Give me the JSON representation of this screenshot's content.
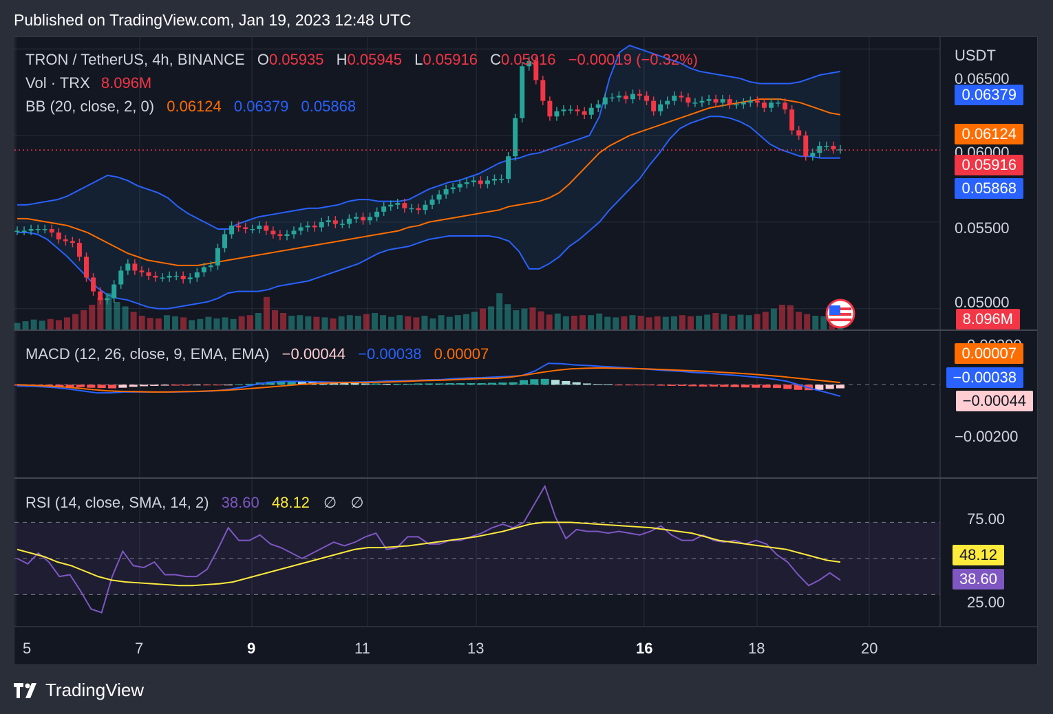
{
  "publish": "Published on TradingView.com, Jan 19, 2023 12:48 UTC",
  "brand": "TradingView",
  "legend": {
    "symbol": "TRON / TetherUS, 4h, BINANCE",
    "o_label": "O",
    "o": "0.05935",
    "h_label": "H",
    "h": "0.05945",
    "l_label": "L",
    "l": "0.05916",
    "c_label": "C",
    "c": "0.05916",
    "change": "−0.00019 (−0.32%)",
    "vol_label": "Vol · TRX",
    "vol": "8.096M",
    "bb_label": "BB (20, close, 2, 0)",
    "bb_mid": "0.06124",
    "bb_up": "0.06379",
    "bb_low": "0.05868",
    "macd_label": "MACD (12, 26, close, 9, EMA, EMA)",
    "macd_hist": "−0.00044",
    "macd_line": "−0.00038",
    "macd_signal": "0.00007",
    "rsi_label": "RSI (14, close, SMA, 14, 2)",
    "rsi": "38.60",
    "rsi_ma": "48.12",
    "na1": "∅",
    "na2": "∅"
  },
  "axis": {
    "currency": "USDT",
    "price_ticks": [
      "0.06500",
      "0.06000",
      "0.05500",
      "0.05000"
    ],
    "macd_ticks": [
      "0.00200",
      "−0.00200"
    ],
    "rsi_ticks": [
      "75.00",
      "25.00"
    ],
    "x_ticks": [
      "5",
      "7",
      "9",
      "11",
      "13",
      "16",
      "18",
      "20"
    ]
  },
  "tags": {
    "bb_up": "0.06379",
    "bb_mid": "0.06124",
    "price": "0.05916",
    "bb_low": "0.05868",
    "vol": "8.096M",
    "macd_signal": "0.00007",
    "macd_line": "−0.00038",
    "macd_hist": "−0.00044",
    "rsi_ma": "48.12",
    "rsi": "38.60"
  },
  "colors": {
    "up": "#26a69a",
    "down": "#f23645",
    "bb_basis": "#ff6d00",
    "bb_band": "#2962ff",
    "macd": "#2962ff",
    "signal": "#ff6d00",
    "rsi": "#7e57c2",
    "rsi_ma": "#ffeb3b"
  },
  "chart_data": {
    "type": "candlestick",
    "timeframe": "4h",
    "ylim": [
      0.0488,
      0.0656
    ],
    "close": [
      0.0545,
      0.0545,
      0.0546,
      0.0546,
      0.0546,
      0.0544,
      0.054,
      0.0539,
      0.0538,
      0.053,
      0.0518,
      0.051,
      0.0505,
      0.0506,
      0.0514,
      0.0522,
      0.0526,
      0.0522,
      0.0521,
      0.0519,
      0.0518,
      0.0518,
      0.0519,
      0.0519,
      0.0517,
      0.0518,
      0.0521,
      0.0524,
      0.0525,
      0.0535,
      0.0543,
      0.0548,
      0.0547,
      0.0546,
      0.0546,
      0.0548,
      0.0545,
      0.0543,
      0.0542,
      0.0543,
      0.0545,
      0.0547,
      0.0548,
      0.0547,
      0.055,
      0.0551,
      0.0549,
      0.0549,
      0.0552,
      0.0553,
      0.0551,
      0.0553,
      0.0556,
      0.0559,
      0.056,
      0.0561,
      0.0558,
      0.0558,
      0.0557,
      0.056,
      0.0563,
      0.0566,
      0.0569,
      0.057,
      0.0572,
      0.0573,
      0.0574,
      0.0572,
      0.0574,
      0.0575,
      0.0575,
      0.0588,
      0.061,
      0.064,
      0.0643,
      0.0632,
      0.062,
      0.0611,
      0.0614,
      0.0615,
      0.0615,
      0.0614,
      0.0612,
      0.0616,
      0.0618,
      0.0622,
      0.0622,
      0.0623,
      0.0621,
      0.0624,
      0.0623,
      0.062,
      0.0614,
      0.0618,
      0.062,
      0.0623,
      0.0622,
      0.0619,
      0.0619,
      0.062,
      0.0621,
      0.0619,
      0.0621,
      0.0618,
      0.0618,
      0.0619,
      0.062,
      0.0619,
      0.0616,
      0.0619,
      0.0619,
      0.0615,
      0.0603,
      0.06,
      0.0588,
      0.059,
      0.0594,
      0.0594,
      0.0592,
      0.0592
    ],
    "bb_upper": [
      0.056,
      0.056,
      0.0561,
      0.0562,
      0.0563,
      0.0565,
      0.0568,
      0.0571,
      0.0574,
      0.0577,
      0.0576,
      0.0574,
      0.0571,
      0.0569,
      0.0567,
      0.0564,
      0.0559,
      0.0555,
      0.0552,
      0.0549,
      0.0546,
      0.0546,
      0.0549,
      0.0551,
      0.0553,
      0.0554,
      0.0555,
      0.0556,
      0.0557,
      0.0558,
      0.0558,
      0.0559,
      0.056,
      0.0562,
      0.0563,
      0.0563,
      0.0562,
      0.0562,
      0.0562,
      0.0563,
      0.0566,
      0.0569,
      0.0571,
      0.0573,
      0.0574,
      0.0576,
      0.0578,
      0.0581,
      0.0584,
      0.0586,
      0.0587,
      0.0589,
      0.059,
      0.0592,
      0.0594,
      0.0596,
      0.0598,
      0.06,
      0.0611,
      0.0633,
      0.0648,
      0.0652,
      0.065,
      0.0648,
      0.0646,
      0.0644,
      0.0642,
      0.0639,
      0.0637,
      0.0636,
      0.0635,
      0.0634,
      0.0633,
      0.0631,
      0.063,
      0.063,
      0.063,
      0.063,
      0.0631,
      0.0633,
      0.0635,
      0.0636,
      0.0637
    ],
    "bb_basis": [
      0.0552,
      0.0552,
      0.0551,
      0.055,
      0.0549,
      0.0548,
      0.0546,
      0.0544,
      0.0541,
      0.0538,
      0.0535,
      0.0532,
      0.053,
      0.0528,
      0.0527,
      0.0526,
      0.0525,
      0.0525,
      0.0525,
      0.0526,
      0.0527,
      0.0528,
      0.0529,
      0.053,
      0.0531,
      0.0532,
      0.0533,
      0.0534,
      0.0535,
      0.0536,
      0.0537,
      0.0538,
      0.0539,
      0.054,
      0.0541,
      0.0542,
      0.0543,
      0.0544,
      0.0545,
      0.0547,
      0.0548,
      0.055,
      0.0551,
      0.0552,
      0.0553,
      0.0554,
      0.0555,
      0.0556,
      0.0557,
      0.0559,
      0.056,
      0.0561,
      0.0562,
      0.0564,
      0.0567,
      0.0572,
      0.0578,
      0.0584,
      0.059,
      0.0594,
      0.0597,
      0.06,
      0.0602,
      0.0604,
      0.0606,
      0.0608,
      0.061,
      0.0612,
      0.0614,
      0.0616,
      0.0617,
      0.0618,
      0.0619,
      0.062,
      0.0621,
      0.0621,
      0.0621,
      0.062,
      0.0619,
      0.0617,
      0.0615,
      0.0613,
      0.0612
    ],
    "bb_lower": [
      0.0544,
      0.0544,
      0.0543,
      0.054,
      0.0535,
      0.053,
      0.0524,
      0.0518,
      0.0512,
      0.0508,
      0.0506,
      0.0505,
      0.0503,
      0.0501,
      0.05,
      0.05,
      0.0501,
      0.0502,
      0.0503,
      0.0504,
      0.0506,
      0.0509,
      0.051,
      0.051,
      0.051,
      0.0511,
      0.0513,
      0.0514,
      0.0515,
      0.0516,
      0.0518,
      0.052,
      0.0522,
      0.0524,
      0.0526,
      0.0529,
      0.0532,
      0.0534,
      0.0535,
      0.0536,
      0.0538,
      0.054,
      0.0541,
      0.0542,
      0.0542,
      0.0542,
      0.0542,
      0.0542,
      0.0541,
      0.0539,
      0.0533,
      0.0523,
      0.0523,
      0.0526,
      0.053,
      0.0536,
      0.054,
      0.0545,
      0.055,
      0.0557,
      0.0563,
      0.0569,
      0.0575,
      0.0583,
      0.059,
      0.0598,
      0.0604,
      0.0607,
      0.0609,
      0.0611,
      0.0611,
      0.061,
      0.0608,
      0.0605,
      0.06,
      0.0595,
      0.0592,
      0.059,
      0.0588,
      0.0588,
      0.0587,
      0.0587,
      0.0587
    ],
    "volume_M": [
      1.2,
      1.5,
      1.8,
      1.6,
      1.9,
      1.7,
      2.2,
      2.8,
      3.5,
      4.5,
      5.8,
      6.6,
      5.0,
      4.2,
      3.2,
      2.5,
      2.1,
      2.0,
      2.6,
      2.4,
      2.2,
      1.7,
      1.9,
      2.3,
      2.0,
      2.2,
      1.9,
      2.4,
      2.6,
      3.0,
      5.9,
      3.5,
      3.0,
      2.5,
      2.6,
      2.4,
      2.3,
      2.2,
      2.0,
      2.4,
      2.6,
      2.5,
      2.8,
      3.0,
      2.6,
      2.3,
      2.6,
      2.4,
      2.2,
      2.5,
      2.0,
      2.6,
      2.3,
      2.6,
      2.8,
      3.2,
      3.8,
      4.2,
      6.6,
      4.6,
      3.5,
      3.8,
      4.0,
      3.3,
      2.7,
      2.9,
      2.4,
      2.5,
      2.6,
      2.6,
      2.9,
      2.3,
      2.2,
      2.4,
      2.6,
      2.5,
      2.2,
      2.4,
      2.3,
      2.4,
      2.6,
      2.4,
      2.5,
      2.7,
      3.0,
      2.8,
      2.5,
      2.7,
      2.6,
      2.8,
      3.2,
      3.8,
      4.5,
      4.4,
      3.2,
      2.8,
      2.5,
      2.4,
      2.2,
      1.0
    ],
    "macd_hist": [
      -3e-05,
      -4e-05,
      -5e-05,
      -5e-05,
      -6e-05,
      -7e-05,
      -8e-05,
      -0.0001,
      -0.00011,
      -0.00012,
      -0.0001,
      -7e-05,
      -5e-05,
      -4e-05,
      -3e-05,
      -3e-05,
      -3e-05,
      -2e-05,
      -2e-05,
      -2e-05,
      -1e-05,
      1e-05,
      3e-05,
      7e-05,
      0.0001,
      0.00011,
      0.00012,
      0.00011,
      0.0001,
      8e-05,
      7e-05,
      6e-05,
      5e-05,
      4e-05,
      4e-05,
      3e-05,
      3e-05,
      3e-05,
      4e-05,
      4e-05,
      4e-05,
      5e-05,
      5e-05,
      5e-05,
      5e-05,
      6e-05,
      7e-05,
      8e-05,
      0.00015,
      0.00018,
      0.00019,
      0.00016,
      0.00012,
      8e-05,
      4e-05,
      2e-05,
      1e-05,
      -1e-05,
      -1e-05,
      -2e-05,
      -2e-05,
      -3e-05,
      -4e-05,
      -4e-05,
      -5e-05,
      -6e-05,
      -6e-05,
      -7e-05,
      -8e-05,
      -9e-05,
      -0.0001,
      -0.0001,
      -0.00011,
      -0.00014,
      -0.00017,
      -0.00018,
      -0.00017,
      -0.00014,
      -0.00012
    ],
    "macd_line": [
      -4e-05,
      -5e-05,
      -7e-05,
      -0.0001,
      -0.00015,
      -0.00021,
      -0.00027,
      -0.00027,
      -0.00024,
      -0.00024,
      -0.00024,
      -0.00024,
      -0.00024,
      -0.00023,
      -0.00022,
      -0.0002,
      -0.00015,
      -8e-05,
      1e-05,
      8e-05,
      0.00011,
      0.00011,
      0.0001,
      9e-05,
      8e-05,
      8e-05,
      9e-05,
      0.0001,
      0.00012,
      0.00013,
      0.00014,
      0.00016,
      0.00017,
      0.0002,
      0.00022,
      0.00023,
      0.00025,
      0.00027,
      0.0003,
      0.00045,
      0.0007,
      0.00069,
      0.00065,
      0.00063,
      0.0006,
      0.00058,
      0.00055,
      0.00052,
      0.00049,
      0.00046,
      0.00044,
      0.0004,
      0.00038,
      0.00034,
      0.00031,
      0.00027,
      0.00023,
      0.00018,
      0.00011,
      -2e-05,
      -0.00015,
      -0.00026,
      -0.00038
    ],
    "macd_signal": [
      0.0,
      -2e-05,
      -4e-05,
      -7e-05,
      -0.00011,
      -0.00016,
      -0.0002,
      -0.00022,
      -0.00023,
      -0.00024,
      -0.00024,
      -0.00023,
      -0.00022,
      -0.0002,
      -0.00018,
      -0.00015,
      -0.00011,
      -7e-05,
      -3e-05,
      1e-05,
      4e-05,
      6e-05,
      7e-05,
      7e-05,
      8e-05,
      9e-05,
      0.00011,
      0.00013,
      0.00014,
      0.00016,
      0.00018,
      0.0002,
      0.00021,
      0.00025,
      0.00032,
      0.0004,
      0.00047,
      0.00052,
      0.00054,
      0.00055,
      0.00054,
      0.00053,
      0.00052,
      0.0005,
      0.00048,
      0.00046,
      0.00044,
      0.00041,
      0.00038,
      0.00035,
      0.00031,
      0.00027,
      0.00022,
      0.00017,
      0.00012,
      7e-05
    ],
    "rsi": [
      50,
      47,
      53,
      48,
      40,
      41,
      32,
      22,
      20,
      40,
      54,
      46,
      45,
      48,
      41,
      41,
      40,
      40,
      44,
      55,
      67,
      60,
      60,
      63,
      58,
      56,
      53,
      50,
      53,
      56,
      59,
      57,
      59,
      62,
      64,
      55,
      56,
      62,
      62,
      58,
      58,
      60,
      60,
      62,
      64,
      67,
      69,
      67,
      70,
      80,
      90,
      73,
      61,
      66,
      65,
      65,
      64,
      65,
      64,
      63,
      65,
      68,
      63,
      60,
      60,
      63,
      60,
      59,
      60,
      58,
      60,
      58,
      52,
      48,
      41,
      35,
      38,
      42,
      38
    ],
    "rsi_ma": [
      55,
      53,
      51,
      48,
      46,
      43,
      40,
      38,
      37,
      36.5,
      36,
      35.5,
      35,
      35,
      35.5,
      36,
      37,
      39,
      41,
      43,
      45,
      47,
      49,
      51,
      53,
      55,
      56,
      56,
      56.5,
      57,
      58,
      59,
      60,
      61,
      62,
      63.5,
      65,
      67,
      69,
      70,
      70,
      70,
      69.5,
      69,
      68.5,
      68,
      67.5,
      67,
      66,
      65,
      64,
      62,
      60,
      59,
      58,
      57,
      56,
      55,
      53,
      51,
      49,
      48
    ]
  }
}
